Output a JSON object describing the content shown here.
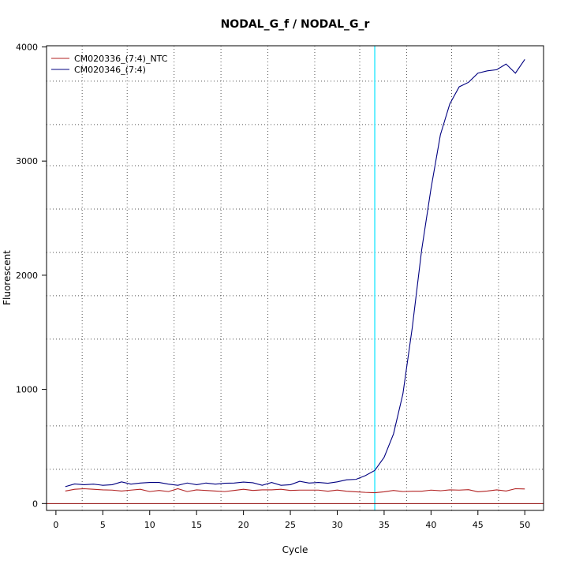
{
  "chart_data": {
    "type": "line",
    "title": "NODAL_G_f / NODAL_G_r",
    "xlabel": "Cycle",
    "ylabel": "Fluorescent",
    "xlim": [
      -1,
      52
    ],
    "ylim": [
      -60,
      4010
    ],
    "x_ticks": [
      0,
      5,
      10,
      15,
      20,
      25,
      30,
      35,
      40,
      45,
      50
    ],
    "y_ticks": [
      0,
      1000,
      2000,
      3000,
      4000
    ],
    "grid": true,
    "grid_x": [
      2.8,
      7.6,
      12.6,
      17.6,
      22.6,
      27.6,
      32.4,
      37.4,
      42.2,
      47.2
    ],
    "grid_y": [
      300,
      680,
      1440,
      1820,
      2200,
      2580,
      2960,
      3320,
      3700
    ],
    "threshold_cycle": 34,
    "threshold_color": "#00e5ff",
    "baseline_color": "#8b0000",
    "legend_position": "top-left",
    "series": [
      {
        "name": "CM020336_(7:4)_NTC",
        "color": "#b22222",
        "x": [
          1,
          2,
          3,
          4,
          5,
          6,
          7,
          8,
          9,
          10,
          11,
          12,
          13,
          14,
          15,
          16,
          17,
          18,
          19,
          20,
          21,
          22,
          23,
          24,
          25,
          26,
          27,
          28,
          29,
          30,
          31,
          32,
          33,
          34,
          35,
          36,
          37,
          38,
          39,
          40,
          41,
          42,
          43,
          44,
          45,
          46,
          47,
          48,
          49,
          50
        ],
        "values": [
          110,
          125,
          130,
          125,
          120,
          118,
          110,
          118,
          125,
          105,
          115,
          105,
          130,
          105,
          120,
          115,
          110,
          105,
          115,
          125,
          115,
          120,
          120,
          125,
          115,
          118,
          118,
          118,
          108,
          118,
          108,
          103,
          98,
          95,
          103,
          115,
          105,
          108,
          108,
          118,
          112,
          120,
          118,
          122,
          103,
          110,
          120,
          110,
          130,
          128
        ]
      },
      {
        "name": "CM020346_(7:4)",
        "color": "#000080",
        "x": [
          1,
          2,
          3,
          4,
          5,
          6,
          7,
          8,
          9,
          10,
          11,
          12,
          13,
          14,
          15,
          16,
          17,
          18,
          19,
          20,
          21,
          22,
          23,
          24,
          25,
          26,
          27,
          28,
          29,
          30,
          31,
          32,
          33,
          34,
          35,
          36,
          37,
          38,
          39,
          40,
          41,
          42,
          43,
          44,
          45,
          46,
          47,
          48,
          49,
          50
        ],
        "values": [
          148,
          172,
          165,
          170,
          160,
          165,
          190,
          170,
          180,
          185,
          185,
          170,
          160,
          180,
          165,
          180,
          170,
          178,
          180,
          188,
          182,
          160,
          185,
          160,
          165,
          195,
          180,
          185,
          178,
          190,
          208,
          212,
          245,
          290,
          405,
          610,
          960,
          1540,
          2220,
          2760,
          3230,
          3500,
          3650,
          3690,
          3770,
          3790,
          3800,
          3850,
          3770,
          3890
        ]
      }
    ]
  }
}
